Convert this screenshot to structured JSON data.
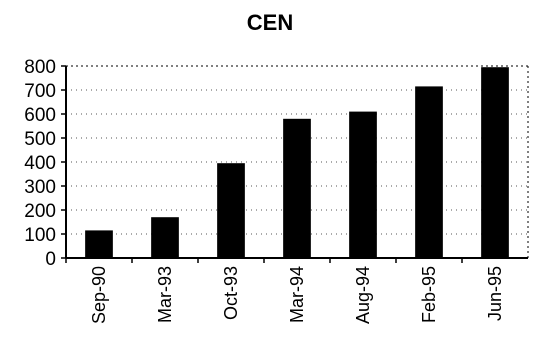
{
  "chart_data": {
    "type": "bar",
    "title": "CEN",
    "xlabel": "",
    "ylabel": "",
    "categories": [
      "Sep-90",
      "Mar-93",
      "Oct-93",
      "Mar-94",
      "Aug-94",
      "Feb-95",
      "Jun-95"
    ],
    "values": [
      115,
      170,
      395,
      580,
      610,
      715,
      795
    ],
    "ylim": [
      0,
      800
    ],
    "yticks": [
      0,
      100,
      200,
      300,
      400,
      500,
      600,
      700,
      800
    ],
    "grid": true,
    "legend": "none",
    "bar_color": "#000000"
  }
}
